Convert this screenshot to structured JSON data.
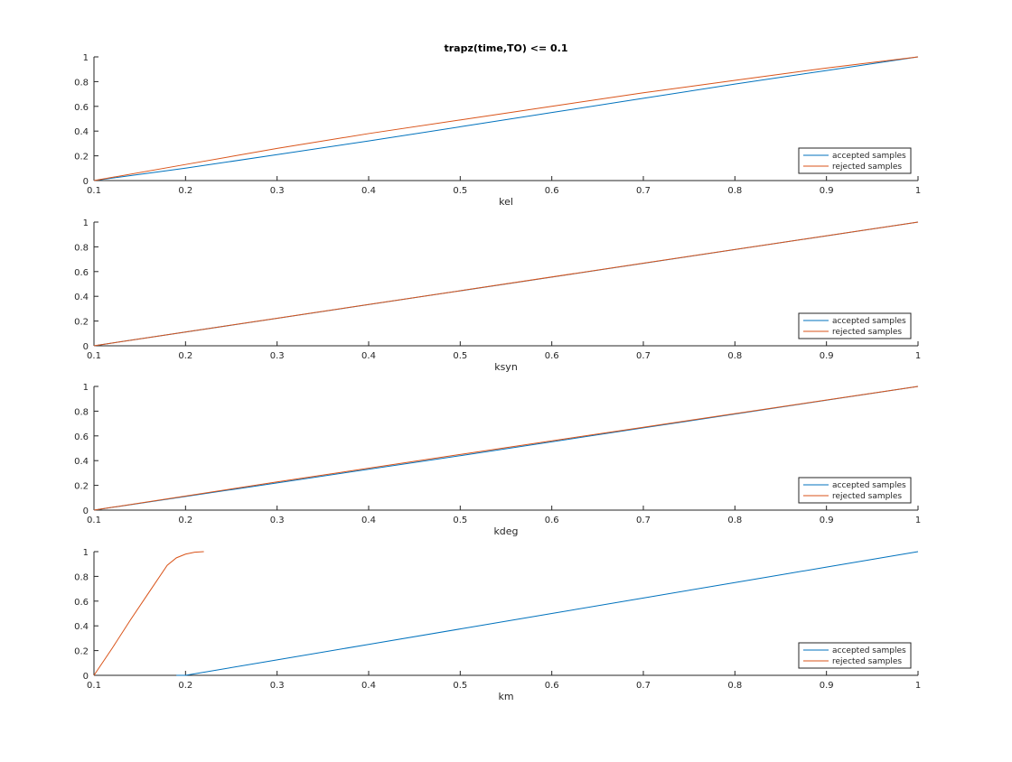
{
  "figure": {
    "title": "trapz(time,TO) <= 0.1",
    "background": "#ffffff"
  },
  "colors": {
    "accepted": "#0072BD",
    "rejected": "#D95319",
    "axis": "#262626"
  },
  "chart_data": [
    {
      "type": "line",
      "xlabel": "kel",
      "xlim": [
        0.1,
        1
      ],
      "ylim": [
        0,
        1
      ],
      "xticks": [
        0.1,
        0.2,
        0.3,
        0.4,
        0.5,
        0.6,
        0.7,
        0.8,
        0.9,
        1
      ],
      "xtick_labels": [
        "0.1",
        "0.2",
        "0.3",
        "0.4",
        "0.5",
        "0.6",
        "0.7",
        "0.8",
        "0.9",
        "1"
      ],
      "yticks": [
        0,
        0.2,
        0.4,
        0.6,
        0.8,
        1
      ],
      "ytick_labels": [
        "0",
        "0.2",
        "0.4",
        "0.6",
        "0.8",
        "1"
      ],
      "legend_position": "bottom-right",
      "series": [
        {
          "name": "accepted samples",
          "color": "#0072BD",
          "x": [
            0.1,
            0.2,
            0.3,
            0.4,
            0.5,
            0.6,
            0.7,
            0.8,
            0.9,
            1.0
          ],
          "y": [
            0,
            0.1,
            0.21,
            0.32,
            0.435,
            0.55,
            0.665,
            0.78,
            0.89,
            1.0
          ]
        },
        {
          "name": "rejected samples",
          "color": "#D95319",
          "x": [
            0.1,
            0.2,
            0.3,
            0.4,
            0.5,
            0.6,
            0.7,
            0.8,
            0.9,
            1.0
          ],
          "y": [
            0,
            0.13,
            0.26,
            0.38,
            0.49,
            0.6,
            0.71,
            0.81,
            0.91,
            1.0
          ]
        }
      ]
    },
    {
      "type": "line",
      "xlabel": "ksyn",
      "xlim": [
        0.1,
        1
      ],
      "ylim": [
        0,
        1
      ],
      "xticks": [
        0.1,
        0.2,
        0.3,
        0.4,
        0.5,
        0.6,
        0.7,
        0.8,
        0.9,
        1
      ],
      "xtick_labels": [
        "0.1",
        "0.2",
        "0.3",
        "0.4",
        "0.5",
        "0.6",
        "0.7",
        "0.8",
        "0.9",
        "1"
      ],
      "yticks": [
        0,
        0.2,
        0.4,
        0.6,
        0.8,
        1
      ],
      "ytick_labels": [
        "0",
        "0.2",
        "0.4",
        "0.6",
        "0.8",
        "1"
      ],
      "legend_position": "bottom-right",
      "series": [
        {
          "name": "accepted samples",
          "color": "#0072BD",
          "x": [
            0.1,
            1.0
          ],
          "y": [
            0,
            1.0
          ]
        },
        {
          "name": "rejected samples",
          "color": "#D95319",
          "x": [
            0.1,
            0.3,
            0.5,
            0.7,
            1.0
          ],
          "y": [
            0,
            0.223,
            0.445,
            0.668,
            1.0
          ]
        }
      ]
    },
    {
      "type": "line",
      "xlabel": "kdeg",
      "xlim": [
        0.1,
        1
      ],
      "ylim": [
        0,
        1
      ],
      "xticks": [
        0.1,
        0.2,
        0.3,
        0.4,
        0.5,
        0.6,
        0.7,
        0.8,
        0.9,
        1
      ],
      "xtick_labels": [
        "0.1",
        "0.2",
        "0.3",
        "0.4",
        "0.5",
        "0.6",
        "0.7",
        "0.8",
        "0.9",
        "1"
      ],
      "yticks": [
        0,
        0.2,
        0.4,
        0.6,
        0.8,
        1
      ],
      "ytick_labels": [
        "0",
        "0.2",
        "0.4",
        "0.6",
        "0.8",
        "1"
      ],
      "legend_position": "bottom-right",
      "series": [
        {
          "name": "accepted samples",
          "color": "#0072BD",
          "x": [
            0.1,
            0.3,
            0.5,
            0.7,
            1.0
          ],
          "y": [
            0,
            0.22,
            0.44,
            0.665,
            1.0
          ]
        },
        {
          "name": "rejected samples",
          "color": "#D95319",
          "x": [
            0.1,
            0.3,
            0.5,
            0.7,
            1.0
          ],
          "y": [
            0,
            0.228,
            0.45,
            0.67,
            1.0
          ]
        }
      ]
    },
    {
      "type": "line",
      "xlabel": "km",
      "xlim": [
        0.1,
        1
      ],
      "ylim": [
        0,
        1
      ],
      "xticks": [
        0.1,
        0.2,
        0.3,
        0.4,
        0.5,
        0.6,
        0.7,
        0.8,
        0.9,
        1
      ],
      "xtick_labels": [
        "0.1",
        "0.2",
        "0.3",
        "0.4",
        "0.5",
        "0.6",
        "0.7",
        "0.8",
        "0.9",
        "1"
      ],
      "yticks": [
        0,
        0.2,
        0.4,
        0.6,
        0.8,
        1
      ],
      "ytick_labels": [
        "0",
        "0.2",
        "0.4",
        "0.6",
        "0.8",
        "1"
      ],
      "legend_position": "bottom-right",
      "series": [
        {
          "name": "accepted samples",
          "color": "#0072BD",
          "x": [
            0.19,
            0.2,
            0.3,
            0.4,
            0.5,
            0.6,
            0.7,
            0.8,
            0.9,
            1.0
          ],
          "y": [
            0,
            0.0,
            0.125,
            0.25,
            0.375,
            0.5,
            0.625,
            0.75,
            0.875,
            1.0
          ]
        },
        {
          "name": "rejected samples",
          "color": "#D95319",
          "x": [
            0.1,
            0.12,
            0.14,
            0.16,
            0.18,
            0.19,
            0.2,
            0.21,
            0.22
          ],
          "y": [
            0,
            0.22,
            0.45,
            0.67,
            0.89,
            0.95,
            0.98,
            0.995,
            1.0
          ]
        }
      ]
    }
  ]
}
